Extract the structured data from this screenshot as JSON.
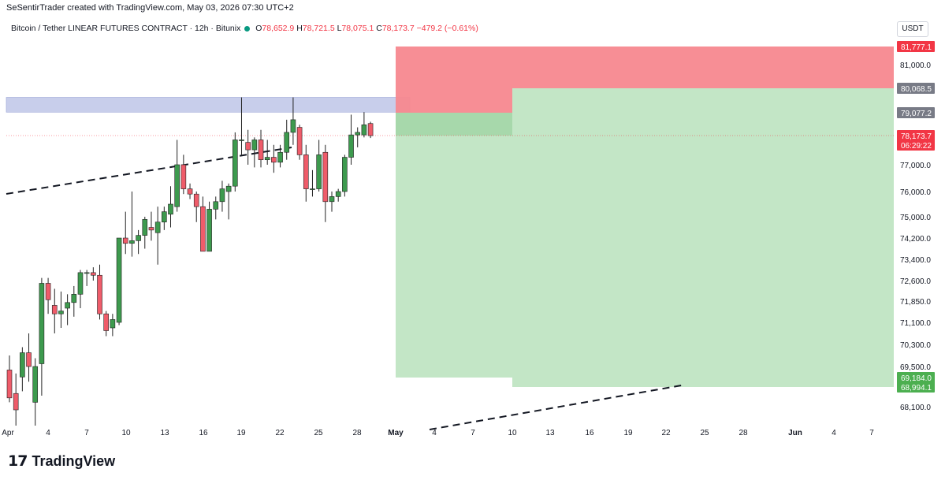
{
  "header": {
    "caption": "SeSentirTrader created with TradingView.com, May 03, 2026 07:30 UTC+2"
  },
  "legend": {
    "symbol": "Bitcoin / Tether LINEAR FUTURES CONTRACT · 12h · Bitunix",
    "o_label": "O",
    "o": "78,652.9",
    "h_label": "H",
    "h": "78,721.5",
    "l_label": "L",
    "l": "78,075.1",
    "c_label": "C",
    "c": "78,173.7",
    "change": "−479.2 (−0.61%)"
  },
  "currency": "USDT",
  "footer": {
    "logo": "17",
    "brand": "TradingView"
  },
  "colors": {
    "up": "#3d9a4e",
    "down": "#ef5c6a",
    "stop_zone": "#f7888f",
    "target_zone": "#c3e6c6",
    "resistance_band": "#c5cbea",
    "price_tag": "#f23645",
    "target_tag": "#4caf50",
    "gray_tag": "#787b86"
  },
  "chart_data": {
    "type": "candlestick",
    "y_axis_ticks": [
      "81,000.0",
      "77,000.0",
      "76,000.0",
      "75,000.0",
      "74,200.0",
      "73,400.0",
      "72,600.0",
      "71,850.0",
      "71,100.0",
      "70,300.0",
      "69,500.0",
      "68,100.0"
    ],
    "x_axis_ticks": [
      "Apr",
      "4",
      "7",
      "10",
      "13",
      "16",
      "19",
      "22",
      "25",
      "28",
      "May",
      "4",
      "7",
      "10",
      "13",
      "16",
      "19",
      "22",
      "25",
      "28",
      "Jun",
      "4",
      "7"
    ],
    "price_tags": [
      {
        "label": "81,777.1",
        "kind": "stop"
      },
      {
        "label": "80,068.5",
        "kind": "gray"
      },
      {
        "label": "79,077.2",
        "kind": "gray"
      },
      {
        "label": "78,173.7",
        "sub": "06:29:22",
        "kind": "price"
      },
      {
        "label": "69,184.0",
        "kind": "target"
      },
      {
        "label": "68,994.1",
        "kind": "target"
      }
    ],
    "resistance_band": [
      79100,
      79700
    ],
    "current_price": 78173.7,
    "candles": [
      [
        69400,
        69900,
        68300,
        68500
      ],
      [
        68700,
        69300,
        67500,
        68000
      ],
      [
        69200,
        70200,
        68800,
        70000
      ],
      [
        70000,
        70700,
        69100,
        69500
      ],
      [
        68300,
        69800,
        67500,
        69500
      ],
      [
        69600,
        72700,
        68600,
        72500
      ],
      [
        72500,
        72700,
        71400,
        71900
      ],
      [
        71700,
        72300,
        70700,
        71400
      ],
      [
        71400,
        72200,
        70900,
        71500
      ],
      [
        71600,
        72100,
        71000,
        71800
      ],
      [
        71800,
        72400,
        71300,
        72100
      ],
      [
        72100,
        73000,
        71600,
        72900
      ],
      [
        72900,
        73000,
        72400,
        72900
      ],
      [
        72900,
        73100,
        72600,
        72800
      ],
      [
        72800,
        73200,
        71200,
        71400
      ],
      [
        71400,
        71500,
        70600,
        70800
      ],
      [
        70900,
        71400,
        70600,
        71200
      ],
      [
        71100,
        74200,
        71000,
        74200
      ],
      [
        74200,
        75200,
        73600,
        74000
      ],
      [
        74000,
        76000,
        73500,
        74100
      ],
      [
        74100,
        74500,
        73600,
        74300
      ],
      [
        74300,
        75000,
        73800,
        74900
      ],
      [
        74600,
        75200,
        74100,
        74500
      ],
      [
        74400,
        75400,
        73200,
        74800
      ],
      [
        74800,
        75400,
        74500,
        75200
      ],
      [
        75100,
        76200,
        74600,
        75500
      ],
      [
        75400,
        78000,
        75200,
        77000
      ],
      [
        77000,
        77400,
        75900,
        76100
      ],
      [
        76100,
        76300,
        75700,
        75900
      ],
      [
        75900,
        76000,
        74800,
        75400
      ],
      [
        75400,
        75800,
        73700,
        73700
      ],
      [
        73700,
        75600,
        73700,
        75300
      ],
      [
        75300,
        75800,
        74900,
        75600
      ],
      [
        75600,
        76400,
        75200,
        76100
      ],
      [
        76000,
        76300,
        74900,
        76200
      ],
      [
        76200,
        78300,
        76000,
        78000
      ],
      [
        78000,
        79700,
        77400,
        78000
      ],
      [
        77900,
        78400,
        77000,
        77600
      ],
      [
        77600,
        78100,
        76900,
        78000
      ],
      [
        78000,
        78400,
        76900,
        77200
      ],
      [
        77200,
        78000,
        77000,
        77300
      ],
      [
        77300,
        77800,
        76700,
        77100
      ],
      [
        77100,
        77800,
        76900,
        77500
      ],
      [
        77500,
        78800,
        77200,
        78300
      ],
      [
        78300,
        79700,
        77800,
        78800
      ],
      [
        78500,
        78600,
        77200,
        77400
      ],
      [
        77400,
        77800,
        75600,
        76100
      ],
      [
        76100,
        76800,
        75800,
        76100
      ],
      [
        76100,
        78000,
        76000,
        77400
      ],
      [
        77500,
        77800,
        74800,
        75600
      ],
      [
        75600,
        76000,
        75200,
        75800
      ],
      [
        75800,
        76100,
        75600,
        76000
      ],
      [
        76000,
        77400,
        75800,
        77300
      ],
      [
        77300,
        79000,
        77000,
        78200
      ],
      [
        78200,
        78500,
        77700,
        78300
      ],
      [
        78200,
        79100,
        78100,
        78600
      ],
      [
        78650,
        78720,
        78075,
        78170
      ]
    ]
  }
}
